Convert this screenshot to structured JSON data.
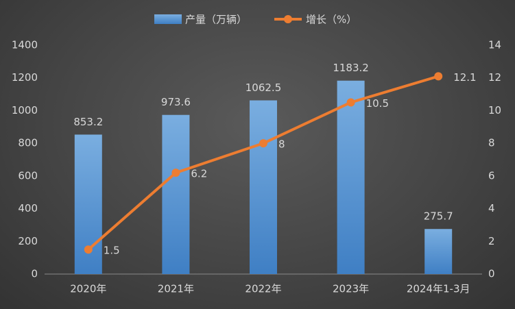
{
  "chart_data": {
    "type": "bar_line",
    "categories": [
      "2020年",
      "2021年",
      "2022年",
      "2023年",
      "2024年1-3月"
    ],
    "series": [
      {
        "name": "产量（万辆）",
        "color": "#5b9bd5",
        "values": [
          853.2,
          973.6,
          1062.5,
          1183.2,
          275.7
        ]
      },
      {
        "name": "增长（%）",
        "color": "#ed7d31",
        "axis": "y2",
        "values": [
          1.5,
          6.2,
          8,
          10.5,
          12.1
        ]
      }
    ],
    "ylim": [
      0,
      1400
    ],
    "yticks": [
      0,
      200,
      400,
      600,
      800,
      1000,
      1200,
      1400
    ],
    "y2lim": [
      0,
      14
    ],
    "y2ticks": [
      0,
      2,
      4,
      6,
      8,
      10,
      12,
      14
    ],
    "grid": false,
    "legend": "top"
  }
}
